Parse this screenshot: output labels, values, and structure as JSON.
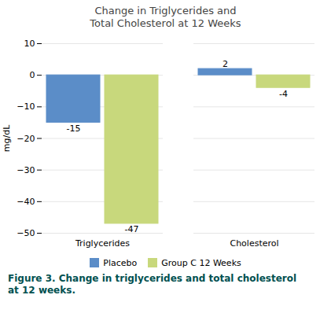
{
  "chart_data": {
    "type": "bar",
    "title": "Change in Triglycerides and\nTotal Cholesterol at 12 Weeks",
    "ylabel": "mg/dL",
    "categories": [
      "Triglycerides",
      "Cholesterol"
    ],
    "series": [
      {
        "name": "Placebo",
        "color": "#5b8dc8",
        "values": [
          -15,
          2
        ]
      },
      {
        "name": "Group C 12 Weeks",
        "color": "#c8d87c",
        "values": [
          -47,
          -4
        ]
      }
    ],
    "ylim": [
      -50,
      10
    ],
    "yticks": [
      10,
      0,
      -10,
      -20,
      -30,
      -40,
      -50
    ],
    "grid": true,
    "legend": "bottom",
    "data_labels": true,
    "caption": "Figure 3. Change in triglycerides and total cholesterol\nat 12 weeks."
  }
}
